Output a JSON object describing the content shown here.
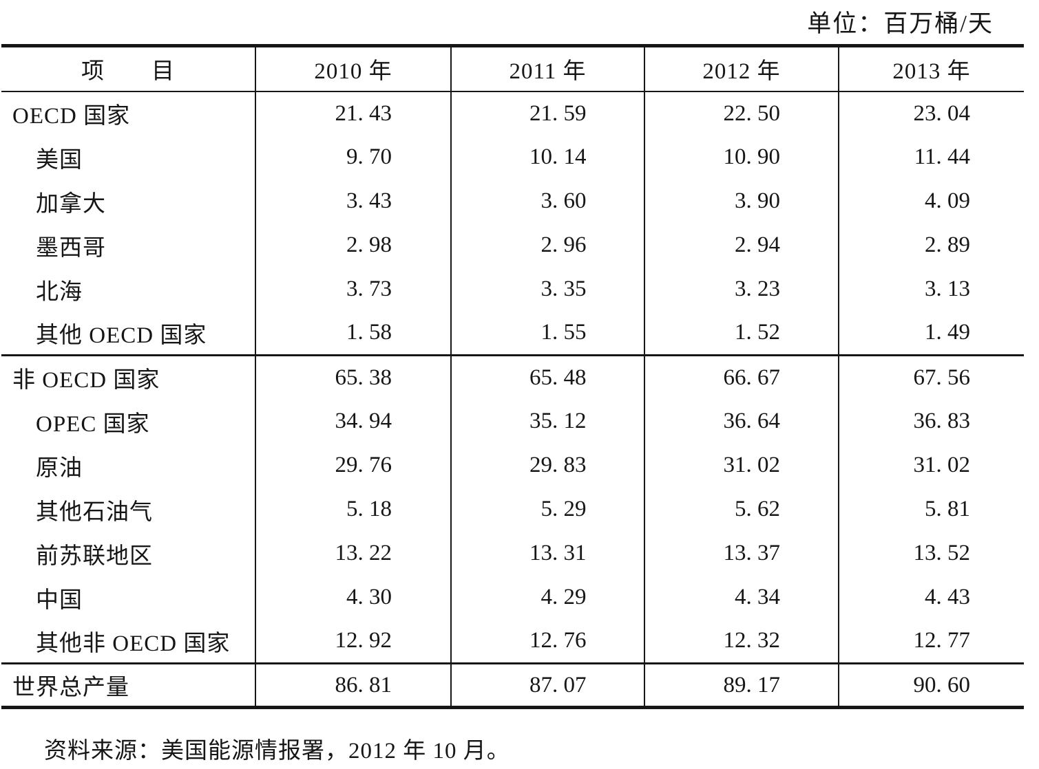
{
  "unit_label": "单位：百万桶/天",
  "table": {
    "header": {
      "item": "项　　目",
      "years": [
        "2010 年",
        "2011 年",
        "2012 年",
        "2013 年"
      ]
    },
    "rows": [
      {
        "label": "OECD 国家",
        "indent": 0,
        "section_start": false,
        "values": [
          "21. 43",
          "21. 59",
          "22. 50",
          "23. 04"
        ]
      },
      {
        "label": "美国",
        "indent": 1,
        "section_start": false,
        "values": [
          "9. 70",
          "10. 14",
          "10. 90",
          "11. 44"
        ]
      },
      {
        "label": "加拿大",
        "indent": 1,
        "section_start": false,
        "values": [
          "3. 43",
          "3. 60",
          "3. 90",
          "4. 09"
        ]
      },
      {
        "label": "墨西哥",
        "indent": 1,
        "section_start": false,
        "values": [
          "2. 98",
          "2. 96",
          "2. 94",
          "2. 89"
        ]
      },
      {
        "label": "北海",
        "indent": 1,
        "section_start": false,
        "values": [
          "3. 73",
          "3. 35",
          "3. 23",
          "3. 13"
        ]
      },
      {
        "label": "其他 OECD 国家",
        "indent": 1,
        "section_start": false,
        "values": [
          "1. 58",
          "1. 55",
          "1. 52",
          "1. 49"
        ]
      },
      {
        "label": "非 OECD 国家",
        "indent": 0,
        "section_start": true,
        "values": [
          "65. 38",
          "65. 48",
          "66. 67",
          "67. 56"
        ]
      },
      {
        "label": "OPEC 国家",
        "indent": 1,
        "section_start": false,
        "values": [
          "34. 94",
          "35. 12",
          "36. 64",
          "36. 83"
        ]
      },
      {
        "label": "原油",
        "indent": 1,
        "section_start": false,
        "values": [
          "29. 76",
          "29. 83",
          "31. 02",
          "31. 02"
        ]
      },
      {
        "label": "其他石油气",
        "indent": 1,
        "section_start": false,
        "values": [
          "5. 18",
          "5. 29",
          "5. 62",
          "5. 81"
        ]
      },
      {
        "label": "前苏联地区",
        "indent": 1,
        "section_start": false,
        "values": [
          "13. 22",
          "13. 31",
          "13. 37",
          "13. 52"
        ]
      },
      {
        "label": "中国",
        "indent": 1,
        "section_start": false,
        "values": [
          "4. 30",
          "4. 29",
          "4. 34",
          "4. 43"
        ]
      },
      {
        "label": "其他非 OECD 国家",
        "indent": 1,
        "section_start": false,
        "values": [
          "12. 92",
          "12. 76",
          "12. 32",
          "12. 77"
        ]
      },
      {
        "label": "世界总产量",
        "indent": 0,
        "section_start": true,
        "values": [
          "86. 81",
          "87. 07",
          "89. 17",
          "90. 60"
        ]
      }
    ]
  },
  "source_note": "资料来源：美国能源情报署，2012 年 10 月。"
}
